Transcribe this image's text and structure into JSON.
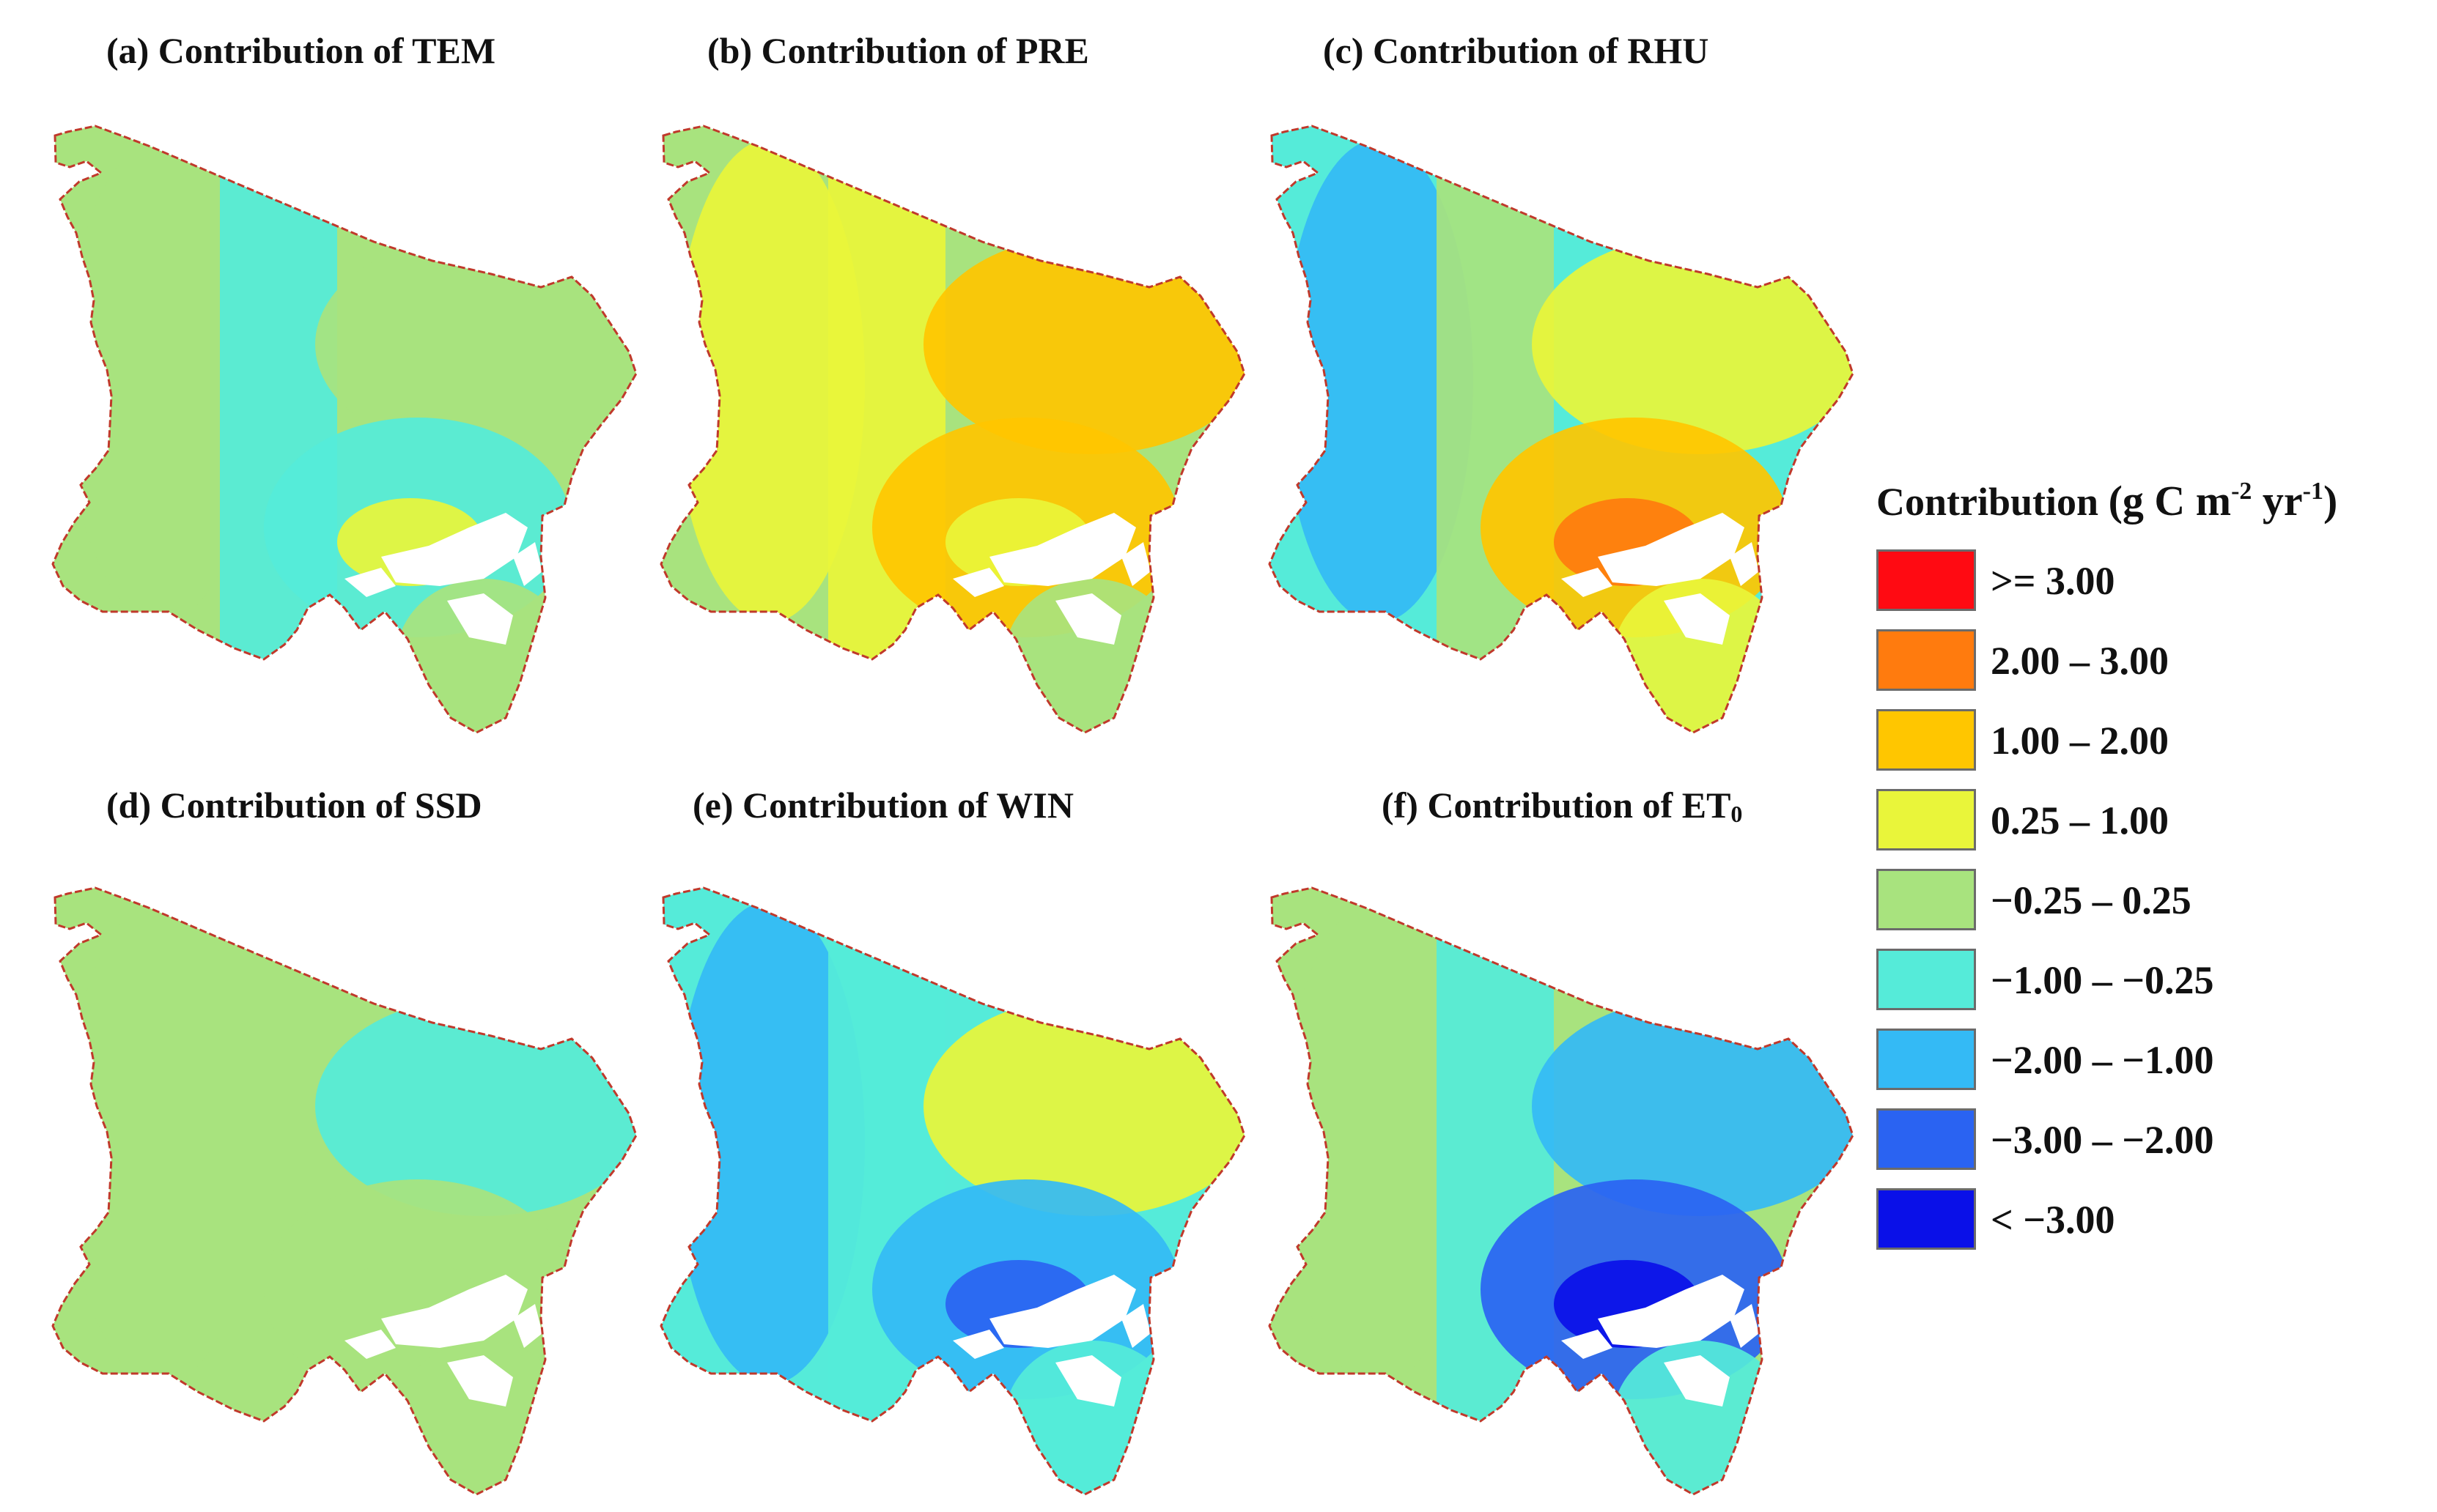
{
  "panels": [
    {
      "id": "a",
      "title": "(a) Contribution of TEM",
      "title_sub": "",
      "colors": [
        "#a8e37e",
        "#a8e37e",
        "#55ebd9",
        "#a8e37e",
        "#55ebd9",
        "#e9f53a",
        "#a8e37e"
      ]
    },
    {
      "id": "b",
      "title": "(b)  Contribution of PRE",
      "title_sub": "",
      "colors": [
        "#a8e37e",
        "#e9f53a",
        "#e9f53a",
        "#ffc600",
        "#ffc600",
        "#e9f53a",
        "#a8e37e"
      ]
    },
    {
      "id": "c",
      "title": "(c)  Contribution of RHU",
      "title_sub": "",
      "colors": [
        "#55ebd9",
        "#34baf5",
        "#a8e37e",
        "#e9f53a",
        "#ffc600",
        "#ff7b0e",
        "#e9f53a"
      ]
    },
    {
      "id": "d",
      "title": "(d)  Contribution of SSD",
      "title_sub": "",
      "colors": [
        "#a8e37e",
        "#a8e37e",
        "#a8e37e",
        "#55ebd9",
        "#a8e37e",
        "#a8e37e",
        "#a8e37e"
      ]
    },
    {
      "id": "e",
      "title": "(e) Contribution of WIN",
      "title_sub": "",
      "colors": [
        "#55ebd9",
        "#34baf5",
        "#55ebd9",
        "#e9f53a",
        "#34baf5",
        "#2a63f2",
        "#55ebd9"
      ]
    },
    {
      "id": "f",
      "title": "(f) Contribution of ET",
      "title_sub": "0",
      "colors": [
        "#a8e37e",
        "#a8e37e",
        "#55ebd9",
        "#34baf5",
        "#2a63f2",
        "#0a10e8",
        "#55ebd9"
      ]
    }
  ],
  "legend": {
    "title_main": "Contribution",
    "units_prefix": "(g C m",
    "units_sup1": "-2",
    "units_mid": " yr",
    "units_sup2": "-1",
    "units_suffix": ")",
    "items": [
      {
        "label": ">= 3.00",
        "color": "#ff0a12"
      },
      {
        "label": "2.00 – 3.00",
        "color": "#ff7b0e"
      },
      {
        "label": "1.00 – 2.00",
        "color": "#ffc600"
      },
      {
        "label": "0.25 – 1.00",
        "color": "#e9f53a"
      },
      {
        "label": "−0.25 – 0.25",
        "color": "#a8e37e"
      },
      {
        "label": "−1.00 – −0.25",
        "color": "#55ebd9"
      },
      {
        "label": "−2.00 – −1.00",
        "color": "#34baf5"
      },
      {
        "label": "−3.00 – −2.00",
        "color": "#2a63f2"
      },
      {
        "label": "< −3.00",
        "color": "#0a10e8"
      }
    ],
    "boundary_color": "#c0392b"
  }
}
